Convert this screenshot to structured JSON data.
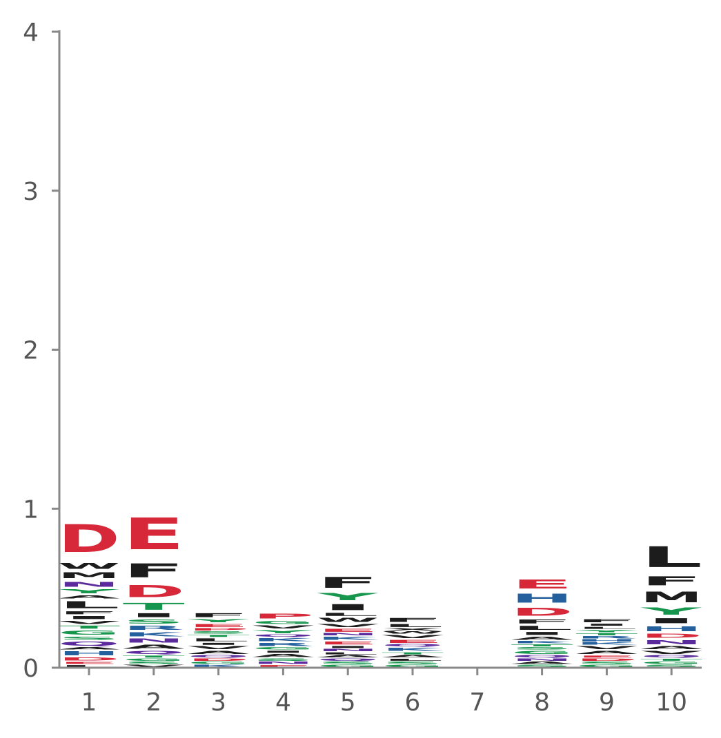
{
  "chart_data": {
    "type": "sequence-logo",
    "title": "",
    "xlabel": "",
    "ylabel": "",
    "ylim": [
      0,
      4
    ],
    "yticks": [
      0,
      1,
      2,
      3,
      4
    ],
    "positions": [
      1,
      2,
      3,
      4,
      5,
      6,
      7,
      8,
      9,
      10
    ],
    "grid": false,
    "colors": {
      "acidic": "#d62839",
      "basic": "#245f9e",
      "polar": "#15964c",
      "amide": "#5b2a9c",
      "hydrophobic": "#1c1c1c",
      "axis": "#888888"
    },
    "stacks": [
      {
        "position": 1,
        "letters": [
          {
            "aa": "L",
            "height": 0.02
          },
          {
            "aa": "E",
            "height": 0.02
          },
          {
            "aa": "D",
            "height": 0.03
          },
          {
            "aa": "H",
            "height": 0.04
          },
          {
            "aa": "A",
            "height": 0.02
          },
          {
            "aa": "Q",
            "height": 0.04
          },
          {
            "aa": "S",
            "height": 0.03
          },
          {
            "aa": "G",
            "height": 0.04
          },
          {
            "aa": "T",
            "height": 0.03
          },
          {
            "aa": "V",
            "height": 0.03
          },
          {
            "aa": "I",
            "height": 0.03
          },
          {
            "aa": "F",
            "height": 0.03
          },
          {
            "aa": "L",
            "height": 0.07
          },
          {
            "aa": "A",
            "height": 0.03
          },
          {
            "aa": "Y",
            "height": 0.04
          },
          {
            "aa": "N",
            "height": 0.05
          },
          {
            "aa": "M",
            "height": 0.06
          },
          {
            "aa": "W",
            "height": 0.06
          },
          {
            "aa": "D",
            "height": 0.28
          }
        ]
      },
      {
        "position": 2,
        "letters": [
          {
            "aa": "V",
            "height": 0.02
          },
          {
            "aa": "S",
            "height": 0.02
          },
          {
            "aa": "G",
            "height": 0.02
          },
          {
            "aa": "T",
            "height": 0.02
          },
          {
            "aa": "Q",
            "height": 0.03
          },
          {
            "aa": "A",
            "height": 0.04
          },
          {
            "aa": "N",
            "height": 0.04
          },
          {
            "aa": "K",
            "height": 0.04
          },
          {
            "aa": "R",
            "height": 0.04
          },
          {
            "aa": "S",
            "height": 0.04
          },
          {
            "aa": "I",
            "height": 0.04
          },
          {
            "aa": "T",
            "height": 0.07
          },
          {
            "aa": "D",
            "height": 0.12
          },
          {
            "aa": "F",
            "height": 0.14
          },
          {
            "aa": "E",
            "height": 0.32
          }
        ]
      },
      {
        "position": 3,
        "letters": [
          {
            "aa": "K",
            "height": 0.02
          },
          {
            "aa": "G",
            "height": 0.02
          },
          {
            "aa": "D",
            "height": 0.02
          },
          {
            "aa": "Q",
            "height": 0.02
          },
          {
            "aa": "A",
            "height": 0.03
          },
          {
            "aa": "V",
            "height": 0.03
          },
          {
            "aa": "I",
            "height": 0.02
          },
          {
            "aa": "L",
            "height": 0.03
          },
          {
            "aa": "T",
            "height": 0.02
          },
          {
            "aa": "S",
            "height": 0.02
          },
          {
            "aa": "P",
            "height": 0.02
          },
          {
            "aa": "E",
            "height": 0.03
          },
          {
            "aa": "Y",
            "height": 0.03
          },
          {
            "aa": "F",
            "height": 0.04
          }
        ]
      },
      {
        "position": 4,
        "letters": [
          {
            "aa": "E",
            "height": 0.02
          },
          {
            "aa": "N",
            "height": 0.02
          },
          {
            "aa": "S",
            "height": 0.02
          },
          {
            "aa": "A",
            "height": 0.03
          },
          {
            "aa": "I",
            "height": 0.02
          },
          {
            "aa": "G",
            "height": 0.02
          },
          {
            "aa": "R",
            "height": 0.03
          },
          {
            "aa": "K",
            "height": 0.03
          },
          {
            "aa": "Q",
            "height": 0.02
          },
          {
            "aa": "Y",
            "height": 0.03
          },
          {
            "aa": "V",
            "height": 0.03
          },
          {
            "aa": "G",
            "height": 0.03
          },
          {
            "aa": "P",
            "height": 0.05
          }
        ]
      },
      {
        "position": 5,
        "letters": [
          {
            "aa": "G",
            "height": 0.02
          },
          {
            "aa": "S",
            "height": 0.02
          },
          {
            "aa": "Q",
            "height": 0.02
          },
          {
            "aa": "A",
            "height": 0.02
          },
          {
            "aa": "L",
            "height": 0.02
          },
          {
            "aa": "N",
            "height": 0.02
          },
          {
            "aa": "I",
            "height": 0.02
          },
          {
            "aa": "E",
            "height": 0.03
          },
          {
            "aa": "K",
            "height": 0.03
          },
          {
            "aa": "N",
            "height": 0.02
          },
          {
            "aa": "E",
            "height": 0.03
          },
          {
            "aa": "V",
            "height": 0.03
          },
          {
            "aa": "W",
            "height": 0.04
          },
          {
            "aa": "L",
            "height": 0.03
          },
          {
            "aa": "I",
            "height": 0.06
          },
          {
            "aa": "Y",
            "height": 0.07
          },
          {
            "aa": "F",
            "height": 0.11
          }
        ]
      },
      {
        "position": 6,
        "letters": [
          {
            "aa": "G",
            "height": 0.02
          },
          {
            "aa": "S",
            "height": 0.02
          },
          {
            "aa": "L",
            "height": 0.02
          },
          {
            "aa": "A",
            "height": 0.02
          },
          {
            "aa": "T",
            "height": 0.02
          },
          {
            "aa": "K",
            "height": 0.03
          },
          {
            "aa": "Q",
            "height": 0.02
          },
          {
            "aa": "E",
            "height": 0.03
          },
          {
            "aa": "V",
            "height": 0.03
          },
          {
            "aa": "W",
            "height": 0.02
          },
          {
            "aa": "X",
            "height": 0.02
          },
          {
            "aa": "L",
            "height": 0.03
          },
          {
            "aa": "F",
            "height": 0.04
          }
        ]
      },
      {
        "position": 7,
        "letters": []
      },
      {
        "position": 8,
        "letters": [
          {
            "aa": "S",
            "height": 0.02
          },
          {
            "aa": "A",
            "height": 0.02
          },
          {
            "aa": "N",
            "height": 0.02
          },
          {
            "aa": "Q",
            "height": 0.02
          },
          {
            "aa": "G",
            "height": 0.03
          },
          {
            "aa": "S",
            "height": 0.02
          },
          {
            "aa": "T",
            "height": 0.02
          },
          {
            "aa": "K",
            "height": 0.02
          },
          {
            "aa": "A",
            "height": 0.03
          },
          {
            "aa": "I",
            "height": 0.03
          },
          {
            "aa": "L",
            "height": 0.04
          },
          {
            "aa": "F",
            "height": 0.04
          },
          {
            "aa": "D",
            "height": 0.08
          },
          {
            "aa": "H",
            "height": 0.09
          },
          {
            "aa": "E",
            "height": 0.09
          }
        ]
      },
      {
        "position": 9,
        "letters": [
          {
            "aa": "G",
            "height": 0.02
          },
          {
            "aa": "S",
            "height": 0.02
          },
          {
            "aa": "D",
            "height": 0.02
          },
          {
            "aa": "E",
            "height": 0.02
          },
          {
            "aa": "A",
            "height": 0.03
          },
          {
            "aa": "V",
            "height": 0.03
          },
          {
            "aa": "K",
            "height": 0.02
          },
          {
            "aa": "H",
            "height": 0.02
          },
          {
            "aa": "R",
            "height": 0.02
          },
          {
            "aa": "T",
            "height": 0.02
          },
          {
            "aa": "Y",
            "height": 0.02
          },
          {
            "aa": "L",
            "height": 0.02
          },
          {
            "aa": "I",
            "height": 0.02
          },
          {
            "aa": "F",
            "height": 0.03
          }
        ]
      },
      {
        "position": 10,
        "letters": [
          {
            "aa": "S",
            "height": 0.02
          },
          {
            "aa": "G",
            "height": 0.02
          },
          {
            "aa": "T",
            "height": 0.02
          },
          {
            "aa": "Q",
            "height": 0.02
          },
          {
            "aa": "V",
            "height": 0.03
          },
          {
            "aa": "A",
            "height": 0.03
          },
          {
            "aa": "N",
            "height": 0.04
          },
          {
            "aa": "D",
            "height": 0.04
          },
          {
            "aa": "H",
            "height": 0.05
          },
          {
            "aa": "I",
            "height": 0.05
          },
          {
            "aa": "Y",
            "height": 0.07
          },
          {
            "aa": "M",
            "height": 0.11
          },
          {
            "aa": "F",
            "height": 0.09
          },
          {
            "aa": "L",
            "height": 0.21
          }
        ]
      }
    ]
  }
}
